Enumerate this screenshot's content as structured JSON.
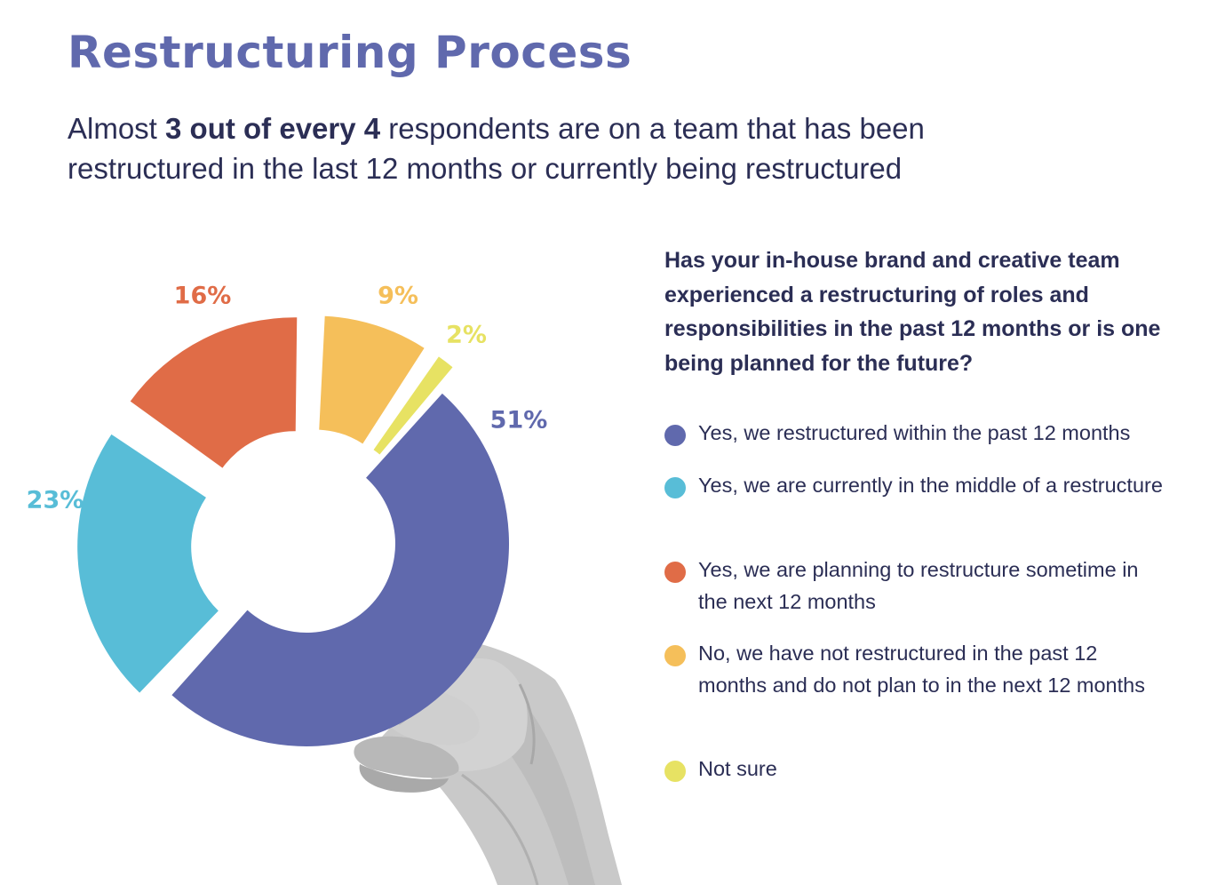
{
  "header": {
    "title": "Restructuring Process",
    "subtitle_pre": "Almost ",
    "subtitle_bold": "3 out of every 4",
    "subtitle_post": " respondents are on a team that has been restructured in the last 12 months or currently being restructured"
  },
  "question": "Has your in-house brand and creative team experienced a restructuring of roles and responsibilities in the past 12 months or is one being planned for the future?",
  "colors": {
    "purple": "#6069ad",
    "teal": "#58bdd7",
    "orange": "#e06c47",
    "amber": "#f5bf5a",
    "yellow": "#e7e263",
    "text": "#2b2e55"
  },
  "chart_data": {
    "type": "pie",
    "variant": "donut, exploded slices",
    "unit": "%",
    "categories": [
      "Yes, we restructured within the past 12 months",
      "Yes, we are currently in the middle of a restructure",
      "Yes, we are planning to restructure sometime in the next 12 months",
      "No, we have not restructured in the past 12 months and do not plan to in the next 12 months",
      "Not sure"
    ],
    "values": [
      51,
      23,
      16,
      9,
      2
    ],
    "labels": [
      "51%",
      "23%",
      "16%",
      "9%",
      "2%"
    ],
    "colors": [
      "#6069ad",
      "#58bdd7",
      "#e06c47",
      "#f5bf5a",
      "#e7e263"
    ],
    "legend_position": "right"
  },
  "legend": [
    {
      "text": "Yes, we restructured within the past 12 months",
      "color": "#6069ad"
    },
    {
      "text": "Yes, we are currently in the middle of a restructure",
      "color": "#58bdd7"
    },
    {
      "text": "Yes, we are planning to restructure sometime in the next 12 months",
      "color": "#e06c47"
    },
    {
      "text": "No, we have not restructured in the past 12 months and do not plan to in the next 12 months",
      "color": "#f5bf5a"
    },
    {
      "text": "Not sure",
      "color": "#e7e263"
    }
  ]
}
